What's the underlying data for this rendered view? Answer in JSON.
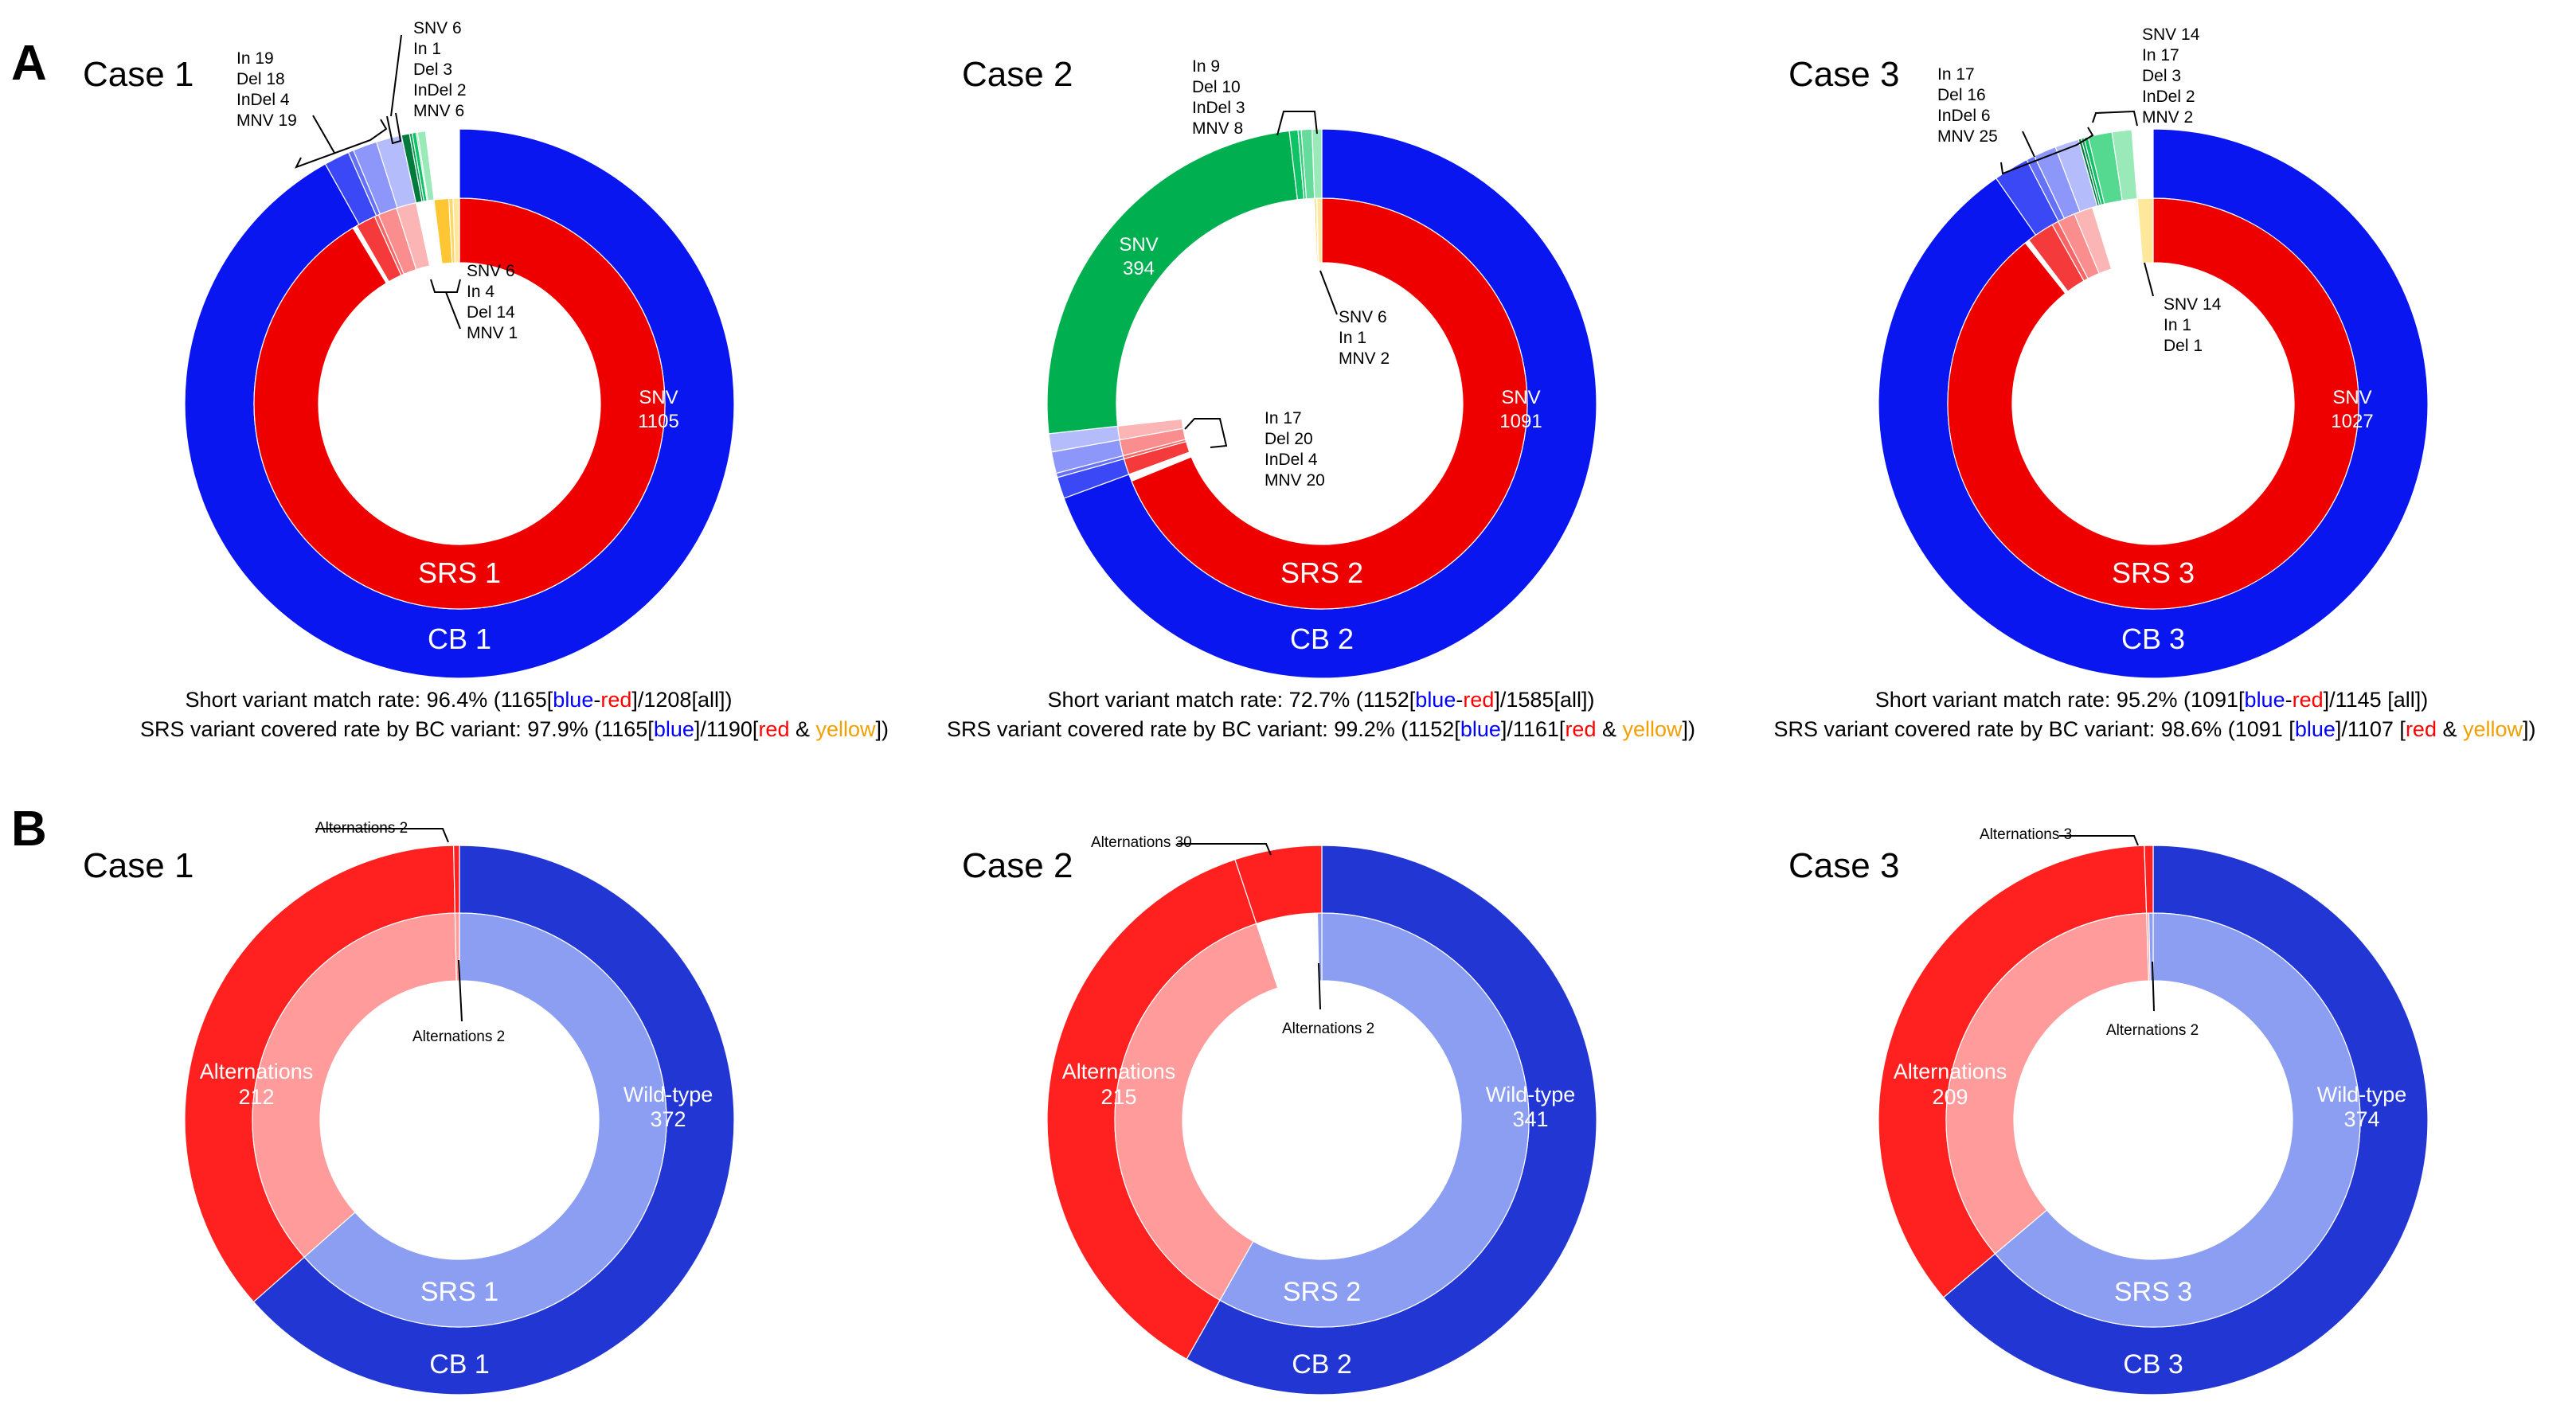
{
  "panel_labels": [
    "A",
    "B"
  ],
  "colors": {
    "cb_blue": "#0a16f0",
    "srs_red": "#ee0000",
    "yellow": "#ffb400",
    "green": "#00b050",
    "b_outer_blue": "#2236d4",
    "b_inner_blue": "#8c9ef2",
    "b_outer_red": "#ff2020",
    "b_inner_red": "#ff9b9b",
    "caption_blue": "#0000ff",
    "caption_red": "#ff0000",
    "caption_yellow": "#f0a000"
  },
  "chart_data": [
    {
      "type": "pie",
      "panel": "A",
      "title": "Case 1",
      "outer_ring": {
        "label": "CB 1",
        "segments": [
          {
            "name": "CB blue",
            "value": 1165,
            "color": "#0a16f0"
          },
          {
            "name": "MNV",
            "value": 19,
            "color": "#3a49f5"
          },
          {
            "name": "InDel",
            "value": 4,
            "color": "#6572f7"
          },
          {
            "name": "Del",
            "value": 18,
            "color": "#8d97fa"
          },
          {
            "name": "In",
            "value": 19,
            "color": "#b5bcfc"
          },
          {
            "name": "MNV",
            "value": 6,
            "color": "#007a3d"
          },
          {
            "name": "InDel",
            "value": 2,
            "color": "#00a04e"
          },
          {
            "name": "Del",
            "value": 3,
            "color": "#10c266"
          },
          {
            "name": "In",
            "value": 1,
            "color": "#55d88f"
          },
          {
            "name": "SNV",
            "value": 6,
            "color": "#9aeab9"
          },
          {
            "name": "gap",
            "value": 25,
            "color": "none"
          }
        ]
      },
      "inner_ring": {
        "label": "SRS 1",
        "segments": [
          {
            "name": "SNV",
            "value": 1105,
            "color": "#ee0000"
          },
          {
            "name": "gap",
            "value": 4,
            "color": "none"
          },
          {
            "name": "MNV",
            "value": 19,
            "color": "#f43a3a"
          },
          {
            "name": "InDel",
            "value": 4,
            "color": "#f76565"
          },
          {
            "name": "Del",
            "value": 18,
            "color": "#fa8d8d"
          },
          {
            "name": "In",
            "value": 19,
            "color": "#fcb5b5"
          },
          {
            "name": "gap",
            "value": 16,
            "color": "none"
          },
          {
            "name": "MNV",
            "value": 1,
            "color": "#ffb400"
          },
          {
            "name": "Del",
            "value": 14,
            "color": "#ffc634"
          },
          {
            "name": "In",
            "value": 4,
            "color": "#ffd768"
          },
          {
            "name": "SNV",
            "value": 6,
            "color": "#ffe79c"
          }
        ]
      },
      "inner_label": {
        "name": "SNV",
        "value": "1105"
      },
      "annotations": [
        {
          "lines": [
            "In 19",
            "Del 18",
            "InDel 4",
            "MNV 19"
          ]
        },
        {
          "lines": [
            "SNV 6",
            "In 1",
            "Del 3",
            "InDel 2",
            "MNV 6"
          ]
        },
        {
          "lines": [
            "SNV 6",
            "In 4",
            "Del 14",
            "MNV 1"
          ]
        }
      ],
      "caption": {
        "line1": [
          "Short variant match rate: 96.4% (1165[",
          "blue",
          "-",
          "red",
          "]/1208[all])"
        ],
        "line2": [
          "SRS variant covered rate by BC variant: 97.9% (1165[",
          "blue",
          "]/1190[",
          "red",
          " & ",
          "yellow",
          "])"
        ]
      }
    },
    {
      "type": "pie",
      "panel": "A",
      "title": "Case 2",
      "outer_ring": {
        "label": "CB 2",
        "segments": [
          {
            "name": "CB blue",
            "value": 1100,
            "color": "#0a16f0"
          },
          {
            "name": "MNV",
            "value": 20,
            "color": "#3a49f5"
          },
          {
            "name": "InDel",
            "value": 4,
            "color": "#6572f7"
          },
          {
            "name": "Del",
            "value": 20,
            "color": "#8d97fa"
          },
          {
            "name": "In",
            "value": 17,
            "color": "#b5bcfc"
          },
          {
            "name": "SNV",
            "value": 394,
            "color": "#00b050"
          },
          {
            "name": "MNV",
            "value": 8,
            "color": "#10c266"
          },
          {
            "name": "InDel",
            "value": 3,
            "color": "#34cf7c"
          },
          {
            "name": "Del",
            "value": 10,
            "color": "#66dc9c"
          },
          {
            "name": "In",
            "value": 9,
            "color": "#9aeab9"
          }
        ]
      },
      "inner_ring": {
        "label": "SRS 2",
        "segments": [
          {
            "name": "SNV",
            "value": 1091,
            "color": "#ee0000"
          },
          {
            "name": "gap",
            "value": 9,
            "color": "none"
          },
          {
            "name": "MNV",
            "value": 20,
            "color": "#f43a3a"
          },
          {
            "name": "InDel",
            "value": 4,
            "color": "#f76565"
          },
          {
            "name": "Del",
            "value": 20,
            "color": "#fa8d8d"
          },
          {
            "name": "In",
            "value": 17,
            "color": "#fcb5b5"
          },
          {
            "name": "gap",
            "value": 415,
            "color": "none"
          },
          {
            "name": "MNV",
            "value": 2,
            "color": "#ffb400"
          },
          {
            "name": "In",
            "value": 1,
            "color": "#ffd768"
          },
          {
            "name": "SNV",
            "value": 6,
            "color": "#ffe79c"
          }
        ]
      },
      "inner_label": {
        "name": "SNV",
        "value": "1091"
      },
      "green_label": {
        "name": "SNV",
        "value": "394"
      },
      "annotations": [
        {
          "lines": [
            "In 9",
            "Del 10",
            "InDel 3",
            "MNV 8"
          ]
        },
        {
          "lines": [
            "SNV 6",
            "In 1",
            "MNV 2"
          ]
        },
        {
          "lines": [
            "In 17",
            "Del 20",
            "InDel 4",
            "MNV 20"
          ]
        }
      ],
      "caption": {
        "line1": [
          "Short variant match rate: 72.7% (1152[",
          "blue",
          "-",
          "red",
          "]/1585[all])"
        ],
        "line2": [
          "SRS variant covered rate by BC variant: 99.2% (1152[",
          "blue",
          "]/1161[",
          "red",
          " & ",
          "yellow",
          "])"
        ]
      }
    },
    {
      "type": "pie",
      "panel": "A",
      "title": "Case 3",
      "outer_ring": {
        "label": "CB 3",
        "segments": [
          {
            "name": "CB blue",
            "value": 1091,
            "color": "#0a16f0"
          },
          {
            "name": "MNV",
            "value": 25,
            "color": "#3a49f5"
          },
          {
            "name": "InDel",
            "value": 6,
            "color": "#6572f7"
          },
          {
            "name": "Del",
            "value": 16,
            "color": "#8d97fa"
          },
          {
            "name": "In",
            "value": 17,
            "color": "#b5bcfc"
          },
          {
            "name": "MNV",
            "value": 2,
            "color": "#007a3d"
          },
          {
            "name": "InDel",
            "value": 2,
            "color": "#00a04e"
          },
          {
            "name": "Del",
            "value": 3,
            "color": "#10c266"
          },
          {
            "name": "In",
            "value": 17,
            "color": "#55d88f"
          },
          {
            "name": "SNV",
            "value": 14,
            "color": "#9aeab9"
          },
          {
            "name": "gap",
            "value": 15,
            "color": "none"
          }
        ]
      },
      "inner_ring": {
        "label": "SRS 3",
        "segments": [
          {
            "name": "SNV",
            "value": 1027,
            "color": "#ee0000"
          },
          {
            "name": "gap",
            "value": 4,
            "color": "none"
          },
          {
            "name": "MNV",
            "value": 25,
            "color": "#f43a3a"
          },
          {
            "name": "InDel",
            "value": 6,
            "color": "#f76565"
          },
          {
            "name": "Del",
            "value": 16,
            "color": "#fa8d8d"
          },
          {
            "name": "In",
            "value": 17,
            "color": "#fcb5b5"
          },
          {
            "name": "gap",
            "value": 39,
            "color": "none"
          },
          {
            "name": "Del",
            "value": 1,
            "color": "#ffb400"
          },
          {
            "name": "In",
            "value": 1,
            "color": "#ffd768"
          },
          {
            "name": "SNV",
            "value": 14,
            "color": "#ffe79c"
          }
        ]
      },
      "inner_label": {
        "name": "SNV",
        "value": "1027"
      },
      "annotations": [
        {
          "lines": [
            "In 17",
            "Del 16",
            "InDel 6",
            "MNV 25"
          ]
        },
        {
          "lines": [
            "SNV 14",
            "In 17",
            "Del 3",
            "InDel 2",
            "MNV 2"
          ]
        },
        {
          "lines": [
            "SNV 14",
            "In 1",
            "Del 1"
          ]
        }
      ],
      "caption": {
        "line1": [
          "Short variant match rate: 95.2% (1091[",
          "blue",
          "-",
          "red",
          "]/1145 [all])"
        ],
        "line2": [
          "SRS variant covered rate by BC variant: 98.6% (1091 [",
          "blue",
          "]/1107 [",
          "red",
          " & ",
          "yellow",
          "])"
        ]
      }
    },
    {
      "type": "pie",
      "panel": "B",
      "title": "Case 1",
      "outer_ring": {
        "label": "CB 1",
        "segments": [
          {
            "name": "Wild-type",
            "value": 372,
            "color": "#2236d4"
          },
          {
            "name": "Alternations",
            "value": 212,
            "color": "#ff2020"
          },
          {
            "name": "Alternations",
            "value": 2,
            "color": "#ff2020"
          }
        ]
      },
      "inner_ring": {
        "label": "SRS 1",
        "segments": [
          {
            "name": "Wild-type",
            "value": 372,
            "color": "#8c9ef2"
          },
          {
            "name": "Alternations",
            "value": 212,
            "color": "#ff9b9b"
          },
          {
            "name": "Alternations",
            "value": 2,
            "color": "#ff9b9b"
          }
        ]
      },
      "wild_label": {
        "name": "Wild-type",
        "value": "372"
      },
      "alt_label": {
        "name": "Alternations",
        "value": "212"
      },
      "outer_note": "Alternations 2",
      "inner_note": "Alternations 2"
    },
    {
      "type": "pie",
      "panel": "B",
      "title": "Case 2",
      "outer_ring": {
        "label": "CB 2",
        "segments": [
          {
            "name": "Wild-type",
            "value": 341,
            "color": "#2236d4"
          },
          {
            "name": "Alternations",
            "value": 215,
            "color": "#ff2020"
          },
          {
            "name": "Alternations",
            "value": 30,
            "color": "#ff2020"
          }
        ]
      },
      "inner_ring": {
        "label": "SRS 2",
        "segments": [
          {
            "name": "Wild-type",
            "value": 341,
            "color": "#8c9ef2"
          },
          {
            "name": "Alternations",
            "value": 215,
            "color": "#ff9b9b"
          },
          {
            "name": "gap",
            "value": 28,
            "color": "none"
          },
          {
            "name": "Alternations",
            "value": 2,
            "color": "#8c9ef2"
          }
        ]
      },
      "wild_label": {
        "name": "Wild-type",
        "value": "341"
      },
      "alt_label": {
        "name": "Alternations",
        "value": "215"
      },
      "outer_note": "Alternations 30",
      "inner_note": "Alternations 2"
    },
    {
      "type": "pie",
      "panel": "B",
      "title": "Case 3",
      "outer_ring": {
        "label": "CB 3",
        "segments": [
          {
            "name": "Wild-type",
            "value": 374,
            "color": "#2236d4"
          },
          {
            "name": "Alternations",
            "value": 209,
            "color": "#ff2020"
          },
          {
            "name": "Alternations",
            "value": 3,
            "color": "#ff2020"
          }
        ]
      },
      "inner_ring": {
        "label": "SRS 3",
        "segments": [
          {
            "name": "Wild-type",
            "value": 374,
            "color": "#8c9ef2"
          },
          {
            "name": "Alternations",
            "value": 209,
            "color": "#ff9b9b"
          },
          {
            "name": "Alternations",
            "value": 1,
            "color": "#ff9b9b"
          },
          {
            "name": "Alternations",
            "value": 2,
            "color": "#8c9ef2"
          }
        ]
      },
      "wild_label": {
        "name": "Wild-type",
        "value": "374"
      },
      "alt_label": {
        "name": "Alternations",
        "value": "209"
      },
      "outer_note": "Alternations 3",
      "inner_note": "Alternations 2"
    }
  ]
}
